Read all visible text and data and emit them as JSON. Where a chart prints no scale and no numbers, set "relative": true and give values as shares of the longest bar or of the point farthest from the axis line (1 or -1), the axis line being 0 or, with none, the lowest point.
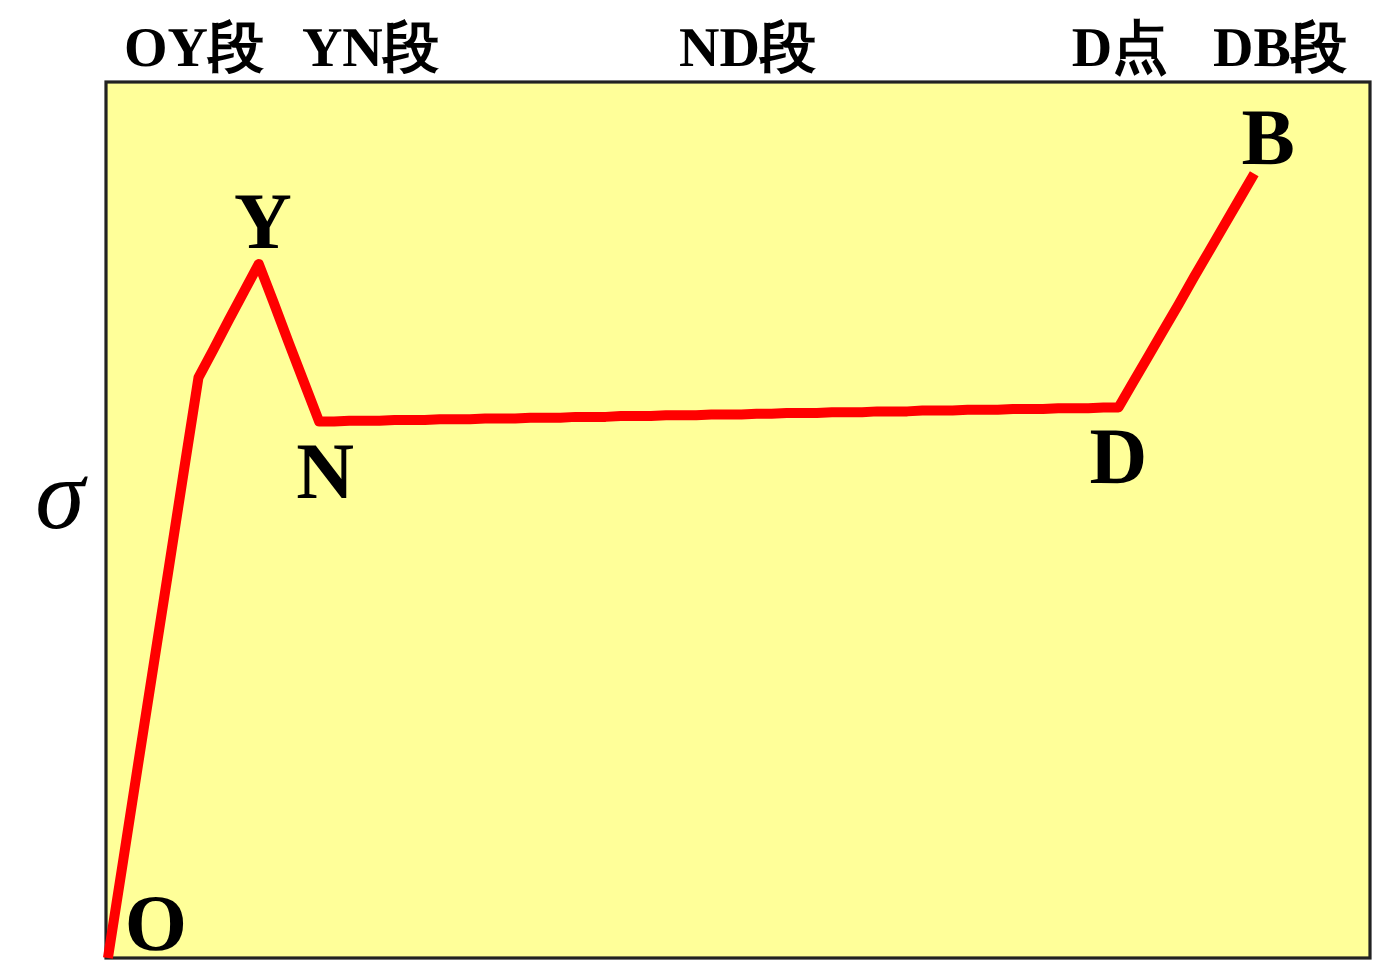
{
  "chart_data": {
    "type": "line",
    "relative": true,
    "line_style": "solid",
    "ylabel": "σ",
    "categories": [
      null,
      null,
      null,
      null,
      null,
      null,
      null,
      null,
      null,
      null,
      null,
      null,
      null,
      null,
      null,
      null,
      null,
      null,
      null,
      null,
      null,
      null,
      null,
      null,
      null,
      null,
      null,
      null,
      null,
      null,
      null,
      null,
      null,
      null,
      null,
      null,
      null,
      null,
      null,
      null,
      null,
      null,
      null,
      null,
      null,
      null,
      null,
      null,
      null,
      null,
      null,
      null,
      null,
      null,
      null,
      null,
      null,
      null,
      null,
      null,
      null,
      null,
      null,
      null,
      null,
      null,
      null,
      null,
      null,
      null,
      null,
      null,
      null,
      null,
      null,
      null,
      null
    ],
    "series": [
      {
        "color": "#ff0000",
        "values": [
          0,
          0.123,
          0.247,
          0.37,
          0.493,
          0.617,
          0.74,
          0.776,
          0.813,
          0.849,
          0.885,
          0.835,
          0.784,
          0.734,
          0.684,
          0.684,
          0.685,
          0.685,
          0.685,
          0.686,
          0.686,
          0.686,
          0.687,
          0.687,
          0.687,
          0.688,
          0.688,
          0.688,
          0.689,
          0.689,
          0.689,
          0.69,
          0.69,
          0.69,
          0.691,
          0.691,
          0.691,
          0.692,
          0.692,
          0.692,
          0.693,
          0.693,
          0.693,
          0.694,
          0.694,
          0.695,
          0.695,
          0.695,
          0.696,
          0.696,
          0.696,
          0.697,
          0.697,
          0.697,
          0.698,
          0.698,
          0.698,
          0.699,
          0.699,
          0.699,
          0.7,
          0.7,
          0.7,
          0.701,
          0.701,
          0.701,
          0.702,
          0.702,
          0.735,
          0.768,
          0.801,
          0.834,
          0.868,
          0.901,
          0.934,
          0.967,
          1
        ]
      }
    ],
    "annotations": [
      "O",
      "Y",
      "N",
      "D",
      "B",
      "OY段",
      "YN段",
      "ND段",
      "D点",
      "DB段"
    ]
  }
}
